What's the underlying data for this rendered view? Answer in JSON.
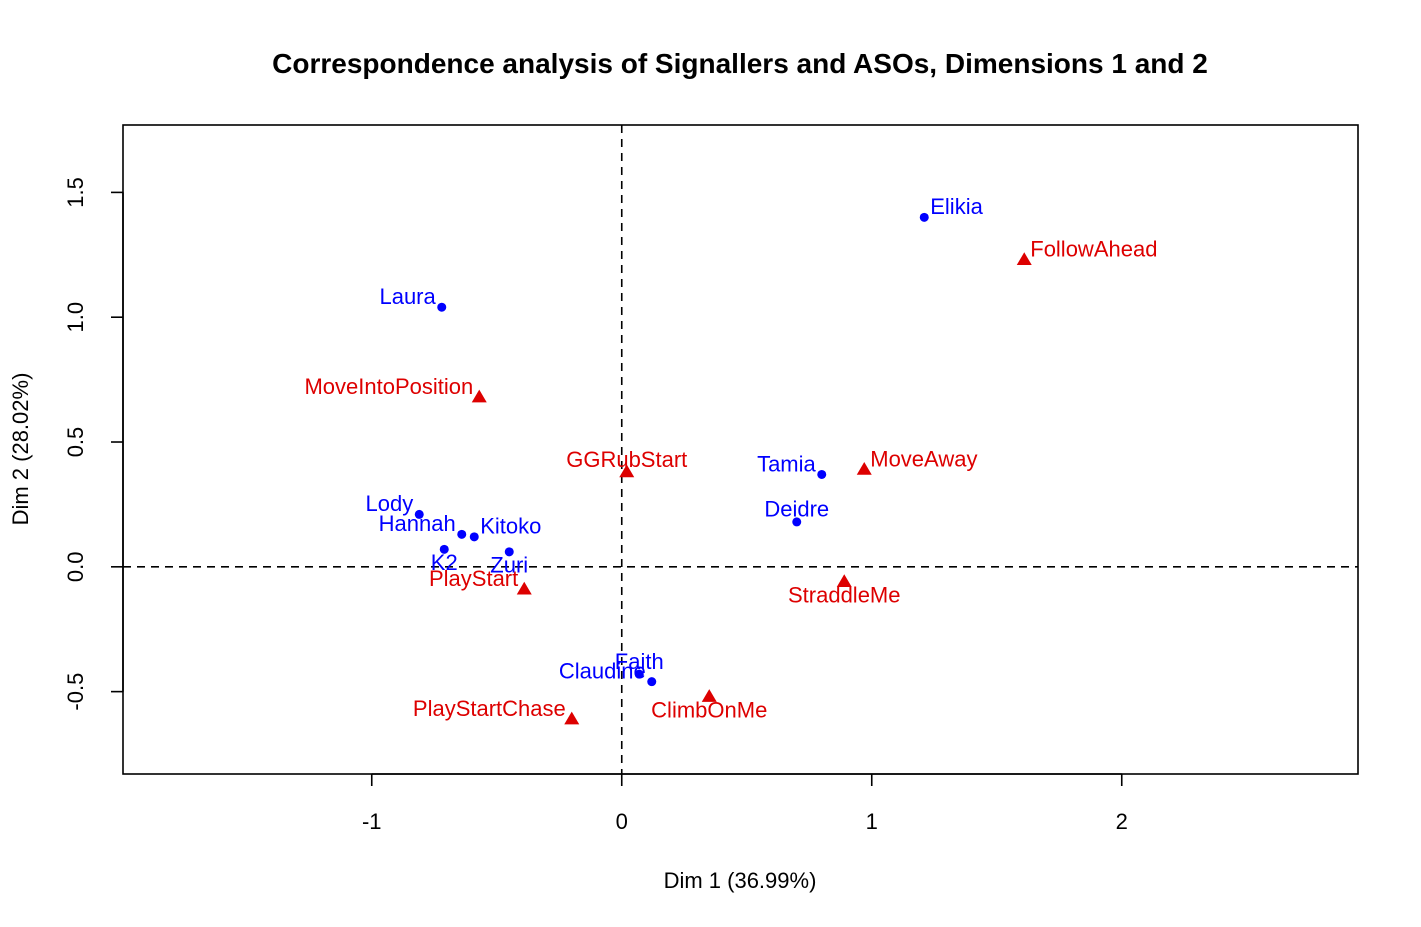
{
  "chart_data": {
    "type": "scatter",
    "title": "Correspondence analysis of Signallers and ASOs, Dimensions 1 and 2",
    "xlabel": "Dim 1 (36.99%)",
    "ylabel": "Dim 2 (28.02%)",
    "xlim": [
      -1.995,
      2.945
    ],
    "ylim": [
      -0.83,
      1.77
    ],
    "x_ticks": [
      -1,
      0,
      1,
      2
    ],
    "x_tick_labels": [
      "-1",
      "0",
      "1",
      "2"
    ],
    "y_ticks": [
      -0.5,
      0.0,
      0.5,
      1.0,
      1.5
    ],
    "y_tick_labels": [
      "-0.5",
      "0.0",
      "0.5",
      "1.0",
      "1.5"
    ],
    "reference_lines": {
      "x": 0,
      "y": 0,
      "style": "dashed"
    },
    "grid": false,
    "legend": "none",
    "series": [
      {
        "marker": "circle",
        "color": "#0000FF",
        "points": [
          {
            "label": "Elikia",
            "x": 1.21,
            "y": 1.4,
            "pos": "right"
          },
          {
            "label": "Laura",
            "x": -0.72,
            "y": 1.04,
            "pos": "left"
          },
          {
            "label": "Tamia",
            "x": 0.8,
            "y": 0.37,
            "pos": "left"
          },
          {
            "label": "Deidre",
            "x": 0.7,
            "y": 0.18,
            "pos": "top"
          },
          {
            "label": "Lody",
            "x": -0.81,
            "y": 0.21,
            "pos": "left"
          },
          {
            "label": "Hannah",
            "x": -0.64,
            "y": 0.13,
            "pos": "left"
          },
          {
            "label": "Kitoko",
            "x": -0.59,
            "y": 0.12,
            "pos": "right"
          },
          {
            "label": "K2",
            "x": -0.71,
            "y": 0.07,
            "pos": "bottom"
          },
          {
            "label": "Zuri",
            "x": -0.45,
            "y": 0.06,
            "pos": "bottom"
          },
          {
            "label": "Faith",
            "x": 0.07,
            "y": -0.43,
            "pos": "top"
          },
          {
            "label": "Claudine",
            "x": 0.12,
            "y": -0.46,
            "pos": "left"
          }
        ]
      },
      {
        "marker": "triangle",
        "color": "#DD0000",
        "points": [
          {
            "label": "FollowAhead",
            "x": 1.61,
            "y": 1.23,
            "pos": "right"
          },
          {
            "label": "MoveIntoPosition",
            "x": -0.57,
            "y": 0.68,
            "pos": "left"
          },
          {
            "label": "GGRubStart",
            "x": 0.02,
            "y": 0.38,
            "pos": "top"
          },
          {
            "label": "MoveAway",
            "x": 0.97,
            "y": 0.39,
            "pos": "right"
          },
          {
            "label": "StraddleMe",
            "x": 0.89,
            "y": -0.06,
            "pos": "bottom"
          },
          {
            "label": "PlayStart",
            "x": -0.39,
            "y": -0.09,
            "pos": "left"
          },
          {
            "label": "ClimbOnMe",
            "x": 0.35,
            "y": -0.52,
            "pos": "bottom"
          },
          {
            "label": "PlayStartChase",
            "x": -0.2,
            "y": -0.61,
            "pos": "left"
          }
        ]
      }
    ]
  }
}
